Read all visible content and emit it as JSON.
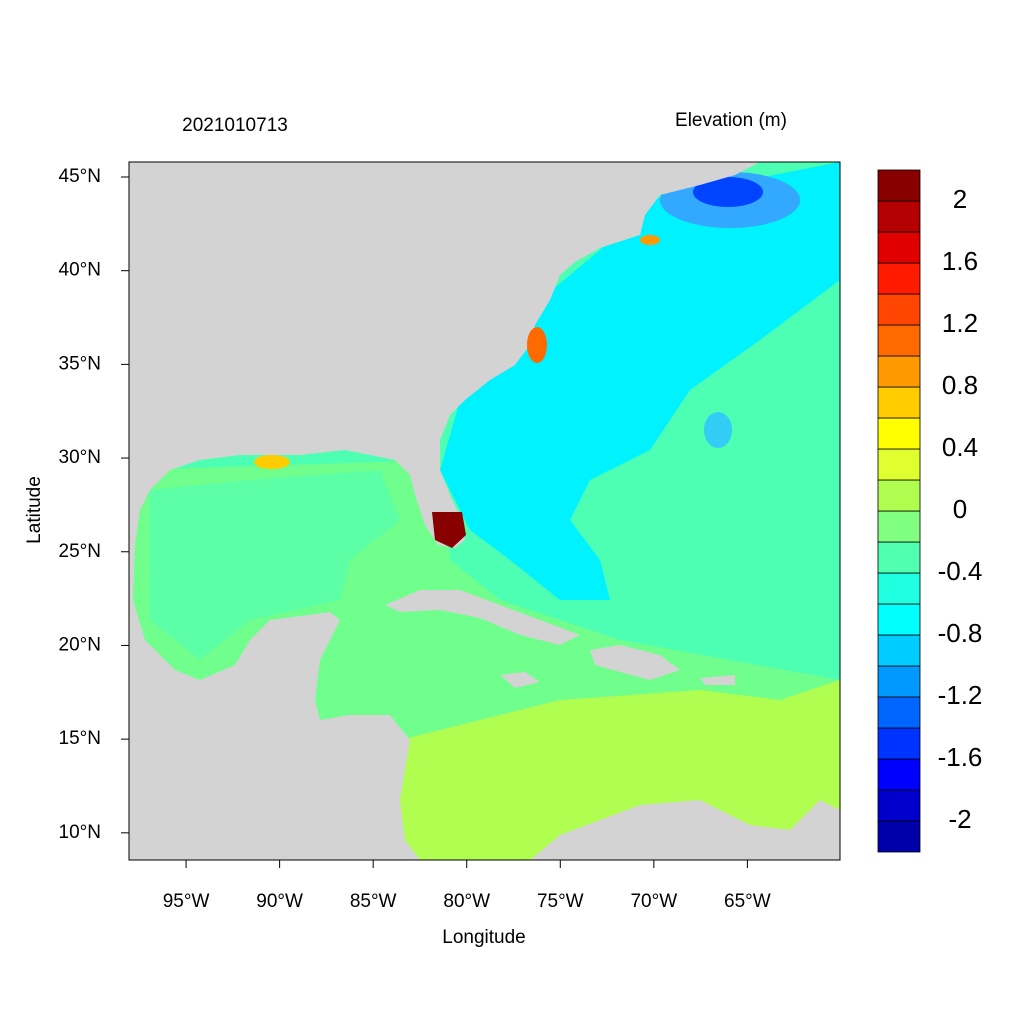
{
  "chart_data": {
    "type": "map",
    "title": "2021010713",
    "subtitle": "Elevation (m)",
    "x_label": "Longitude",
    "y_label": "Latitude",
    "xlim": [
      -98.05,
      -60.05
    ],
    "ylim": [
      8.55,
      45.8
    ],
    "xticks": [
      {
        "value": -95,
        "label": "95°W"
      },
      {
        "value": -90,
        "label": "90°W"
      },
      {
        "value": -85,
        "label": "85°W"
      },
      {
        "value": -80,
        "label": "80°W"
      },
      {
        "value": -75,
        "label": "75°W"
      },
      {
        "value": -70,
        "label": "70°W"
      },
      {
        "value": -65,
        "label": "65°W"
      }
    ],
    "yticks": [
      {
        "value": 10,
        "label": "10°N"
      },
      {
        "value": 15,
        "label": "15°N"
      },
      {
        "value": 20,
        "label": "20°N"
      },
      {
        "value": 25,
        "label": "25°N"
      },
      {
        "value": 30,
        "label": "30°N"
      },
      {
        "value": 35,
        "label": "35°N"
      },
      {
        "value": 40,
        "label": "40°N"
      },
      {
        "value": 45,
        "label": "45°N"
      }
    ],
    "colorbar": {
      "lim": [
        -2.2,
        2.2
      ],
      "colors": [
        "#0000aa",
        "#0000cd",
        "#0000ff",
        "#0033ff",
        "#0066ff",
        "#0099ff",
        "#00ccff",
        "#00ffff",
        "#20ffe0",
        "#50ffb0",
        "#80ff80",
        "#b0ff50",
        "#dfff2f",
        "#ffff00",
        "#ffcc00",
        "#ff9900",
        "#ff6a00",
        "#ff4500",
        "#ff1a00",
        "#e00000",
        "#b40000",
        "#880000"
      ],
      "ticks": [
        -2,
        -1.6,
        -1.2,
        -0.8,
        -0.4,
        0,
        0.4,
        0.8,
        1.2,
        1.6,
        2
      ]
    }
  }
}
